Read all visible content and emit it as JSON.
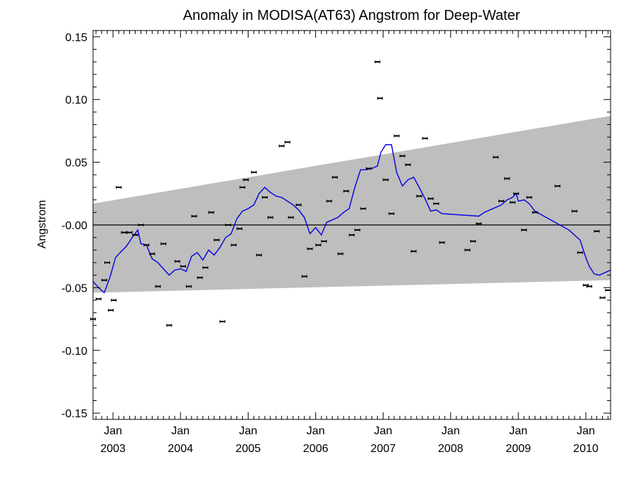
{
  "chart_data": {
    "type": "scatter",
    "title": "Anomaly in MODISA(AT63) Angstrom for Deep-Water",
    "ylabel": "Angstrom",
    "xlabel": "",
    "ylim": [
      -0.155,
      0.155
    ],
    "xlim": [
      "2002-09-15",
      "2010-05-15"
    ],
    "y_ticks": [
      {
        "value": 0.15,
        "label": "0.15"
      },
      {
        "value": 0.1,
        "label": "0.10"
      },
      {
        "value": 0.05,
        "label": "0.05"
      },
      {
        "value": 0.0,
        "label": "-0.00"
      },
      {
        "value": -0.05,
        "label": "-0.05"
      },
      {
        "value": -0.1,
        "label": "-0.10"
      },
      {
        "value": -0.15,
        "label": "-0.15"
      }
    ],
    "x_ticks": [
      {
        "date": "2003-01-01",
        "month": "Jan",
        "year": "2003"
      },
      {
        "date": "2004-01-01",
        "month": "Jan",
        "year": "2004"
      },
      {
        "date": "2005-01-01",
        "month": "Jan",
        "year": "2005"
      },
      {
        "date": "2006-01-01",
        "month": "Jan",
        "year": "2006"
      },
      {
        "date": "2007-01-01",
        "month": "Jan",
        "year": "2007"
      },
      {
        "date": "2008-01-01",
        "month": "Jan",
        "year": "2008"
      },
      {
        "date": "2009-01-01",
        "month": "Jan",
        "year": "2009"
      },
      {
        "date": "2010-01-01",
        "month": "Jan",
        "year": "2010"
      }
    ],
    "grid": false,
    "zero_line": true,
    "colors": {
      "points": "#000000",
      "smooth_line": "#0000dd",
      "band": "#bebebe",
      "zero_line": "#000000"
    },
    "uncertainty_band": {
      "lower": [
        {
          "x": "2002-09-15",
          "y": -0.054
        },
        {
          "x": "2010-05-15",
          "y": -0.044
        }
      ],
      "upper": [
        {
          "x": "2002-09-15",
          "y": 0.017
        },
        {
          "x": "2010-05-15",
          "y": 0.087
        }
      ]
    },
    "series": [
      {
        "type": "scatter",
        "points": [
          {
            "x": "2002-09-15",
            "y": -0.075
          },
          {
            "x": "2002-10-15",
            "y": -0.059
          },
          {
            "x": "2002-11-15",
            "y": -0.044
          },
          {
            "x": "2002-12-01",
            "y": -0.03
          },
          {
            "x": "2002-12-20",
            "y": -0.068
          },
          {
            "x": "2003-01-05",
            "y": -0.06
          },
          {
            "x": "2003-02-01",
            "y": 0.03
          },
          {
            "x": "2003-03-01",
            "y": -0.006
          },
          {
            "x": "2003-04-01",
            "y": -0.006
          },
          {
            "x": "2003-05-01",
            "y": -0.008
          },
          {
            "x": "2003-06-01",
            "y": 0.0
          },
          {
            "x": "2003-07-01",
            "y": -0.016
          },
          {
            "x": "2003-08-01",
            "y": -0.023
          },
          {
            "x": "2003-09-01",
            "y": -0.049
          },
          {
            "x": "2003-10-01",
            "y": -0.015
          },
          {
            "x": "2003-11-01",
            "y": -0.08
          },
          {
            "x": "2003-12-15",
            "y": -0.029
          },
          {
            "x": "2004-01-15",
            "y": -0.033
          },
          {
            "x": "2004-02-15",
            "y": -0.049
          },
          {
            "x": "2004-03-15",
            "y": 0.007
          },
          {
            "x": "2004-04-15",
            "y": -0.042
          },
          {
            "x": "2004-05-15",
            "y": -0.034
          },
          {
            "x": "2004-06-15",
            "y": 0.01
          },
          {
            "x": "2004-07-15",
            "y": -0.012
          },
          {
            "x": "2004-08-15",
            "y": -0.077
          },
          {
            "x": "2004-09-15",
            "y": 0.0
          },
          {
            "x": "2004-10-15",
            "y": -0.016
          },
          {
            "x": "2004-11-15",
            "y": -0.003
          },
          {
            "x": "2004-12-01",
            "y": 0.03
          },
          {
            "x": "2004-12-20",
            "y": 0.036
          },
          {
            "x": "2005-02-01",
            "y": 0.042
          },
          {
            "x": "2005-03-01",
            "y": -0.024
          },
          {
            "x": "2005-04-01",
            "y": 0.022
          },
          {
            "x": "2005-05-01",
            "y": 0.006
          },
          {
            "x": "2005-07-01",
            "y": 0.063
          },
          {
            "x": "2005-08-01",
            "y": 0.066
          },
          {
            "x": "2005-08-20",
            "y": 0.006
          },
          {
            "x": "2005-10-01",
            "y": 0.016
          },
          {
            "x": "2005-11-01",
            "y": -0.041
          },
          {
            "x": "2005-12-01",
            "y": -0.019
          },
          {
            "x": "2006-01-15",
            "y": -0.016
          },
          {
            "x": "2006-02-15",
            "y": -0.013
          },
          {
            "x": "2006-03-15",
            "y": 0.019
          },
          {
            "x": "2006-04-15",
            "y": 0.038
          },
          {
            "x": "2006-05-15",
            "y": -0.023
          },
          {
            "x": "2006-06-15",
            "y": 0.027
          },
          {
            "x": "2006-07-15",
            "y": -0.008
          },
          {
            "x": "2006-08-15",
            "y": -0.004
          },
          {
            "x": "2006-09-15",
            "y": 0.013
          },
          {
            "x": "2006-10-15",
            "y": 0.045
          },
          {
            "x": "2006-12-01",
            "y": 0.13
          },
          {
            "x": "2006-12-15",
            "y": 0.101
          },
          {
            "x": "2007-01-15",
            "y": 0.036
          },
          {
            "x": "2007-02-15",
            "y": 0.009
          },
          {
            "x": "2007-03-15",
            "y": 0.071
          },
          {
            "x": "2007-04-15",
            "y": 0.055
          },
          {
            "x": "2007-05-15",
            "y": 0.048
          },
          {
            "x": "2007-06-15",
            "y": -0.021
          },
          {
            "x": "2007-07-15",
            "y": 0.023
          },
          {
            "x": "2007-08-15",
            "y": 0.069
          },
          {
            "x": "2007-09-15",
            "y": 0.021
          },
          {
            "x": "2007-10-15",
            "y": 0.017
          },
          {
            "x": "2007-11-15",
            "y": -0.014
          },
          {
            "x": "2008-04-01",
            "y": -0.02
          },
          {
            "x": "2008-05-01",
            "y": -0.013
          },
          {
            "x": "2008-06-01",
            "y": 0.001
          },
          {
            "x": "2008-09-01",
            "y": 0.054
          },
          {
            "x": "2008-10-01",
            "y": 0.019
          },
          {
            "x": "2008-11-01",
            "y": 0.037
          },
          {
            "x": "2008-12-01",
            "y": 0.018
          },
          {
            "x": "2008-12-20",
            "y": 0.025
          },
          {
            "x": "2009-02-01",
            "y": -0.004
          },
          {
            "x": "2009-03-01",
            "y": 0.022
          },
          {
            "x": "2009-04-01",
            "y": 0.01
          },
          {
            "x": "2009-08-01",
            "y": 0.031
          },
          {
            "x": "2009-11-01",
            "y": 0.011
          },
          {
            "x": "2009-12-01",
            "y": -0.022
          },
          {
            "x": "2010-01-01",
            "y": -0.048
          },
          {
            "x": "2010-01-20",
            "y": -0.049
          },
          {
            "x": "2010-03-01",
            "y": -0.005
          },
          {
            "x": "2010-04-01",
            "y": -0.058
          },
          {
            "x": "2010-05-01",
            "y": -0.052
          }
        ]
      },
      {
        "type": "line",
        "points": [
          {
            "x": "2002-09-15",
            "y": -0.045
          },
          {
            "x": "2002-10-15",
            "y": -0.05
          },
          {
            "x": "2002-11-15",
            "y": -0.054
          },
          {
            "x": "2002-12-15",
            "y": -0.042
          },
          {
            "x": "2003-01-15",
            "y": -0.026
          },
          {
            "x": "2003-02-15",
            "y": -0.021
          },
          {
            "x": "2003-03-15",
            "y": -0.017
          },
          {
            "x": "2003-04-15",
            "y": -0.01
          },
          {
            "x": "2003-05-15",
            "y": -0.004
          },
          {
            "x": "2003-06-01",
            "y": -0.015
          },
          {
            "x": "2003-07-01",
            "y": -0.016
          },
          {
            "x": "2003-08-01",
            "y": -0.027
          },
          {
            "x": "2003-09-01",
            "y": -0.03
          },
          {
            "x": "2003-10-01",
            "y": -0.035
          },
          {
            "x": "2003-11-01",
            "y": -0.04
          },
          {
            "x": "2003-12-01",
            "y": -0.036
          },
          {
            "x": "2004-01-01",
            "y": -0.035
          },
          {
            "x": "2004-02-01",
            "y": -0.037
          },
          {
            "x": "2004-03-01",
            "y": -0.025
          },
          {
            "x": "2004-04-01",
            "y": -0.022
          },
          {
            "x": "2004-05-01",
            "y": -0.028
          },
          {
            "x": "2004-06-01",
            "y": -0.02
          },
          {
            "x": "2004-07-01",
            "y": -0.024
          },
          {
            "x": "2004-08-01",
            "y": -0.018
          },
          {
            "x": "2004-09-01",
            "y": -0.01
          },
          {
            "x": "2004-10-01",
            "y": -0.007
          },
          {
            "x": "2004-11-01",
            "y": 0.005
          },
          {
            "x": "2004-12-01",
            "y": 0.011
          },
          {
            "x": "2005-01-01",
            "y": 0.013
          },
          {
            "x": "2005-02-01",
            "y": 0.016
          },
          {
            "x": "2005-03-01",
            "y": 0.025
          },
          {
            "x": "2005-04-01",
            "y": 0.03
          },
          {
            "x": "2005-05-01",
            "y": 0.026
          },
          {
            "x": "2005-06-01",
            "y": 0.023
          },
          {
            "x": "2005-07-01",
            "y": 0.022
          },
          {
            "x": "2005-08-01",
            "y": 0.019
          },
          {
            "x": "2005-09-01",
            "y": 0.016
          },
          {
            "x": "2005-10-01",
            "y": 0.012
          },
          {
            "x": "2005-11-01",
            "y": 0.006
          },
          {
            "x": "2005-12-01",
            "y": -0.007
          },
          {
            "x": "2006-01-01",
            "y": -0.002
          },
          {
            "x": "2006-02-01",
            "y": -0.008
          },
          {
            "x": "2006-03-01",
            "y": 0.002
          },
          {
            "x": "2006-04-01",
            "y": 0.004
          },
          {
            "x": "2006-05-01",
            "y": 0.006
          },
          {
            "x": "2006-06-01",
            "y": 0.01
          },
          {
            "x": "2006-07-01",
            "y": 0.013
          },
          {
            "x": "2006-08-01",
            "y": 0.03
          },
          {
            "x": "2006-09-01",
            "y": 0.044
          },
          {
            "x": "2006-10-01",
            "y": 0.044
          },
          {
            "x": "2006-11-01",
            "y": 0.045
          },
          {
            "x": "2006-12-01",
            "y": 0.047
          },
          {
            "x": "2006-12-20",
            "y": 0.058
          },
          {
            "x": "2007-01-15",
            "y": 0.064
          },
          {
            "x": "2007-02-15",
            "y": 0.064
          },
          {
            "x": "2007-03-15",
            "y": 0.042
          },
          {
            "x": "2007-04-15",
            "y": 0.031
          },
          {
            "x": "2007-05-15",
            "y": 0.036
          },
          {
            "x": "2007-06-15",
            "y": 0.038
          },
          {
            "x": "2007-07-15",
            "y": 0.03
          },
          {
            "x": "2007-08-15",
            "y": 0.021
          },
          {
            "x": "2007-09-15",
            "y": 0.011
          },
          {
            "x": "2007-10-15",
            "y": 0.012
          },
          {
            "x": "2007-11-15",
            "y": 0.009
          },
          {
            "x": "2008-06-01",
            "y": 0.007
          },
          {
            "x": "2008-07-01",
            "y": 0.01
          },
          {
            "x": "2008-10-01",
            "y": 0.016
          },
          {
            "x": "2008-11-01",
            "y": 0.02
          },
          {
            "x": "2008-12-01",
            "y": 0.022
          },
          {
            "x": "2008-12-20",
            "y": 0.025
          },
          {
            "x": "2009-01-01",
            "y": 0.019
          },
          {
            "x": "2009-02-01",
            "y": 0.02
          },
          {
            "x": "2009-03-01",
            "y": 0.017
          },
          {
            "x": "2009-04-01",
            "y": 0.011
          },
          {
            "x": "2009-10-01",
            "y": -0.004
          },
          {
            "x": "2009-12-01",
            "y": -0.012
          },
          {
            "x": "2010-01-01",
            "y": -0.026
          },
          {
            "x": "2010-01-20",
            "y": -0.033
          },
          {
            "x": "2010-02-15",
            "y": -0.039
          },
          {
            "x": "2010-03-15",
            "y": -0.04
          },
          {
            "x": "2010-05-15",
            "y": -0.036
          }
        ]
      }
    ]
  }
}
